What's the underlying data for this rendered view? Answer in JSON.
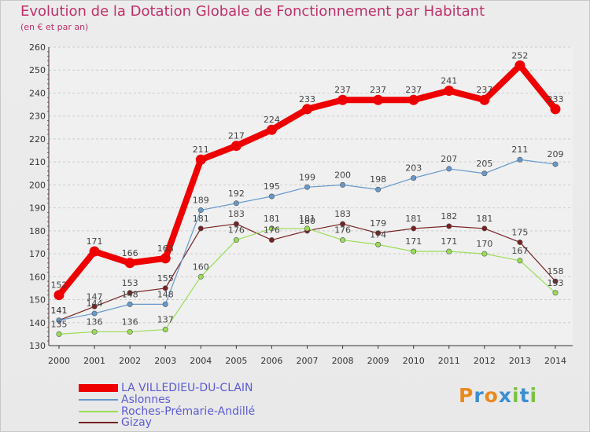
{
  "header": {
    "title": "Evolution de la Dotation Globale de Fonctionnement par Habitant",
    "subtitle": "(en € et par an)"
  },
  "chart_data": {
    "type": "line",
    "title": "Evolution de la Dotation Globale de Fonctionnement par Habitant",
    "subtitle": "(en € et par an)",
    "xlabel": "",
    "ylabel": "",
    "ylim": [
      130,
      260
    ],
    "yticks": [
      130,
      140,
      150,
      160,
      170,
      180,
      190,
      200,
      210,
      220,
      230,
      240,
      250,
      260
    ],
    "grid": "horizontal dashed",
    "categories": [
      "2000",
      "2001",
      "2002",
      "2003",
      "2004",
      "2005",
      "2006",
      "2007",
      "2008",
      "2009",
      "2010",
      "2011",
      "2012",
      "2013",
      "2014"
    ],
    "series": [
      {
        "name": "LA VILLEDIEU-DU-CLAIN",
        "color": "#ee0000",
        "values": [
          152,
          171,
          166,
          168,
          211,
          217,
          224,
          233,
          237,
          237,
          237,
          241,
          237,
          252,
          233
        ]
      },
      {
        "name": "Aslonnes",
        "color": "#6699cc",
        "values": [
          141,
          144,
          148,
          148,
          189,
          192,
          195,
          199,
          200,
          198,
          203,
          207,
          205,
          211,
          209
        ]
      },
      {
        "name": "Roches-Prémarie-Andillé",
        "color": "#99dd55",
        "values": [
          135,
          136,
          136,
          137,
          160,
          176,
          181,
          181,
          176,
          174,
          171,
          171,
          170,
          167,
          153
        ]
      },
      {
        "name": "Gizay",
        "color": "#772222",
        "values": [
          141,
          147,
          153,
          155,
          181,
          183,
          176,
          180,
          183,
          179,
          181,
          182,
          181,
          175,
          158
        ]
      }
    ]
  },
  "logo": {
    "text": "Proxiti",
    "colors": [
      "#e98a1f",
      "#3a8fd0",
      "#e98a1f",
      "#3a8fd0",
      "#7cc242",
      "#3a8fd0",
      "#7cc242"
    ]
  }
}
